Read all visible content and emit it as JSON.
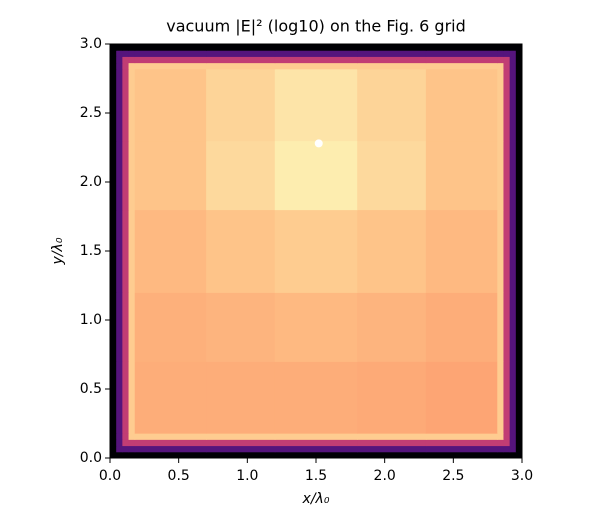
{
  "chart_data": {
    "type": "heatmap",
    "title": "vacuum |E|² (log10) on the Fig. 6 grid",
    "xlabel": "x/λ₀",
    "ylabel": "y/λ₀",
    "colormap": "magma",
    "zlim": [
      -3,
      0
    ],
    "xlim": [
      0,
      3
    ],
    "ylim": [
      0,
      3
    ],
    "xticks": [
      {
        "value": 0,
        "label": "0.0"
      },
      0.5,
      {
        "value": 1,
        "label": "1.0"
      },
      1.5,
      {
        "value": 2,
        "label": "2.0"
      },
      2.5,
      {
        "value": 3,
        "label": "3.0"
      }
    ],
    "yticks": [
      {
        "value": 0,
        "label": "0.0"
      },
      0.5,
      {
        "value": 1,
        "label": "1.0"
      },
      1.5,
      {
        "value": 2,
        "label": "2.0"
      },
      2.5,
      {
        "value": 3,
        "label": "3.0"
      }
    ],
    "xbins": [
      0,
      0.045,
      0.09,
      0.135,
      0.18,
      0.7,
      1.2,
      1.8,
      2.3,
      2.82,
      2.865,
      2.91,
      2.955,
      3
    ],
    "ybins": [
      0,
      0.045,
      0.09,
      0.135,
      0.18,
      0.7,
      1.2,
      1.8,
      2.3,
      2.82,
      2.865,
      2.91,
      2.955,
      3
    ],
    "z": [
      [
        -3,
        -3,
        -3,
        -3,
        -3,
        -3,
        -3,
        -3,
        -3,
        -3,
        -3,
        -3,
        -3
      ],
      [
        -3,
        -2.2,
        -2.2,
        -2.2,
        -2.2,
        -2.2,
        -2.2,
        -2.2,
        -2.2,
        -2.2,
        -2.2,
        -2.2,
        -3
      ],
      [
        -3,
        -2.2,
        -1.4,
        -1.4,
        -1.4,
        -1.4,
        -1.4,
        -1.4,
        -1.4,
        -1.4,
        -1.4,
        -2.2,
        -3
      ],
      [
        -3,
        -2.2,
        -1.4,
        -0.3,
        -0.3,
        -0.3,
        -0.3,
        -0.3,
        -0.3,
        -0.3,
        -1.4,
        -2.2,
        -3
      ],
      [
        -3,
        -2.2,
        -1.4,
        -0.3,
        -0.5,
        -0.5,
        -0.5,
        -0.52,
        -0.55,
        -0.3,
        -1.4,
        -2.2,
        -3
      ],
      [
        -3,
        -2.2,
        -1.4,
        -0.3,
        -0.48,
        -0.45,
        -0.42,
        -0.45,
        -0.5,
        -0.3,
        -1.4,
        -2.2,
        -3
      ],
      [
        -3,
        -2.2,
        -1.4,
        -0.3,
        -0.42,
        -0.35,
        -0.3,
        -0.35,
        -0.42,
        -0.3,
        -1.4,
        -2.2,
        -3
      ],
      [
        -3,
        -2.2,
        -1.4,
        -0.3,
        -0.35,
        -0.22,
        -0.1,
        -0.22,
        -0.35,
        -0.3,
        -1.4,
        -2.2,
        -3
      ],
      [
        -3,
        -2.2,
        -1.4,
        -0.3,
        -0.35,
        -0.25,
        -0.15,
        -0.25,
        -0.35,
        -0.3,
        -1.4,
        -2.2,
        -3
      ],
      [
        -3,
        -2.2,
        -1.4,
        -0.3,
        -0.3,
        -0.3,
        -0.3,
        -0.3,
        -0.3,
        -0.3,
        -1.4,
        -2.2,
        -3
      ],
      [
        -3,
        -2.2,
        -1.4,
        -1.4,
        -1.4,
        -1.4,
        -1.4,
        -1.4,
        -1.4,
        -1.4,
        -1.4,
        -2.2,
        -3
      ],
      [
        -3,
        -2.2,
        -2.2,
        -2.2,
        -2.2,
        -2.2,
        -2.2,
        -2.2,
        -2.2,
        -2.2,
        -2.2,
        -2.2,
        -3
      ],
      [
        -3,
        -3,
        -3,
        -3,
        -3,
        -3,
        -3,
        -3,
        -3,
        -3,
        -3,
        -3,
        -3
      ]
    ],
    "points": {
      "x": [
        1.52
      ],
      "y": [
        2.28
      ],
      "color": "#ffffff"
    }
  }
}
